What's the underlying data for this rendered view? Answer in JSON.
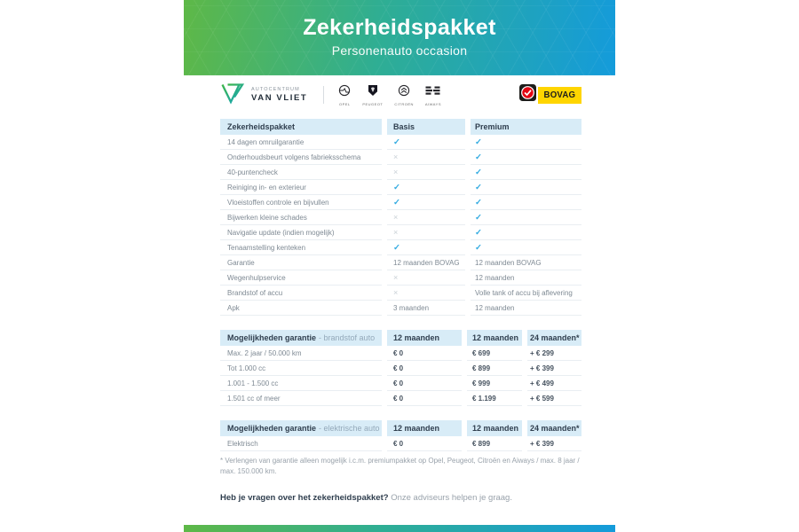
{
  "banner": {
    "title": "Zekerheidspakket",
    "subtitle": "Personenauto occasion"
  },
  "dealer": {
    "line1": "AUTOCENTRUM",
    "line2": "VAN VLIET"
  },
  "brands": [
    {
      "name": "OPEL"
    },
    {
      "name": "PEUGEOT"
    },
    {
      "name": "CITROËN"
    },
    {
      "name": "AIWAYS"
    }
  ],
  "bovag_label": "BOVAG",
  "package_table": {
    "headers": {
      "name": "Zekerheidspakket",
      "col1": "Basis",
      "col2": "Premium"
    },
    "rows": [
      {
        "label": "14 dagen omruilgarantie",
        "basis": "✓",
        "premium": "✓"
      },
      {
        "label": "Onderhoudsbeurt volgens fabrieksschema",
        "basis": "×",
        "premium": "✓"
      },
      {
        "label": "40-puntencheck",
        "basis": "×",
        "premium": "✓"
      },
      {
        "label": "Reiniging in- en exterieur",
        "basis": "✓",
        "premium": "✓"
      },
      {
        "label": "Vloeistoffen controle en bijvullen",
        "basis": "✓",
        "premium": "✓"
      },
      {
        "label": "Bijwerken kleine schades",
        "basis": "×",
        "premium": "✓"
      },
      {
        "label": "Navigatie update (indien mogelijk)",
        "basis": "×",
        "premium": "✓"
      },
      {
        "label": "Tenaamstelling kenteken",
        "basis": "✓",
        "premium": "✓"
      },
      {
        "label": "Garantie",
        "basis": "12 maanden BOVAG",
        "premium": "12 maanden BOVAG"
      },
      {
        "label": "Wegenhulpservice",
        "basis": "×",
        "premium": "12 maanden"
      },
      {
        "label": "Brandstof of accu",
        "basis": "×",
        "premium": "Volle tank of accu bij aflevering"
      },
      {
        "label": "Apk",
        "basis": "3 maanden",
        "premium": "12 maanden"
      }
    ]
  },
  "fuel_table": {
    "title": "Mogelijkheden garantie",
    "subtitle": "- brandstof auto",
    "col_headers": [
      "12 maanden",
      "12 maanden",
      "24 maanden*"
    ],
    "rows": [
      {
        "label": "Max. 2 jaar / 50.000 km",
        "values": [
          "€ 0",
          "€ 699",
          "+ € 299"
        ]
      },
      {
        "label": "Tot 1.000 cc",
        "values": [
          "€ 0",
          "€ 899",
          "+ € 399"
        ]
      },
      {
        "label": "1.001 - 1.500 cc",
        "values": [
          "€ 0",
          "€ 999",
          "+ € 499"
        ]
      },
      {
        "label": "1.501 cc of meer",
        "values": [
          "€ 0",
          "€ 1.199",
          "+ € 599"
        ]
      }
    ]
  },
  "electric_table": {
    "title": "Mogelijkheden garantie",
    "subtitle": "- elektrische auto",
    "col_headers": [
      "12 maanden",
      "12 maanden",
      "24 maanden*"
    ],
    "rows": [
      {
        "label": "Elektrisch",
        "values": [
          "€ 0",
          "€ 899",
          "+ € 399"
        ]
      }
    ]
  },
  "footnote": "* Verlengen van garantie alleen mogelijk i.c.m. premiumpakket op Opel, Peugeot, Citroën en Aiways / max. 8 jaar / max. 150.000 km.",
  "footer": {
    "bold": "Heb je vragen over het zekerheidspakket?",
    "regular": " Onze adviseurs helpen je graag."
  },
  "colors": {
    "gradient_start": "#5eb847",
    "gradient_end": "#149bdb",
    "header_bg": "#d8ecf7",
    "check": "#33abe1",
    "cross": "#c9d0d6",
    "bovag_yellow": "#ffd500"
  }
}
